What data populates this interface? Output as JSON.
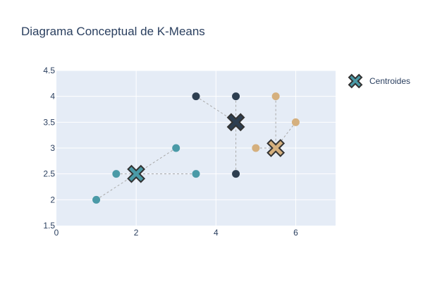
{
  "chart_data": {
    "type": "scatter",
    "title": "Diagrama Conceptual de K-Means",
    "xlim": [
      0,
      7
    ],
    "ylim": [
      1.5,
      4.5
    ],
    "x_ticks": [
      "0",
      "2",
      "4",
      "6"
    ],
    "x_tick_values": [
      0,
      2,
      4,
      6
    ],
    "y_ticks": [
      "1.5",
      "2",
      "2.5",
      "3",
      "3.5",
      "4",
      "4.5"
    ],
    "y_tick_values": [
      1.5,
      2,
      2.5,
      3,
      3.5,
      4,
      4.5
    ],
    "grid": true,
    "legend_position": "top-right",
    "legend": [
      "Centroides"
    ],
    "clusters": [
      {
        "color": "#4a9aa7",
        "points": [
          {
            "x": 1,
            "y": 2
          },
          {
            "x": 1.5,
            "y": 2.5
          },
          {
            "x": 3,
            "y": 3
          },
          {
            "x": 3.5,
            "y": 2.5
          }
        ],
        "centroid": {
          "x": 2,
          "y": 2.5
        }
      },
      {
        "color": "#2d3e50",
        "points": [
          {
            "x": 3.5,
            "y": 4
          },
          {
            "x": 4.5,
            "y": 4
          },
          {
            "x": 4.5,
            "y": 2.5
          }
        ],
        "centroid": {
          "x": 4.5,
          "y": 3.5
        }
      },
      {
        "color": "#d5b07e",
        "points": [
          {
            "x": 5,
            "y": 3
          },
          {
            "x": 5.5,
            "y": 4
          },
          {
            "x": 6,
            "y": 3.5
          }
        ],
        "centroid": {
          "x": 5.5,
          "y": 3
        }
      }
    ]
  }
}
